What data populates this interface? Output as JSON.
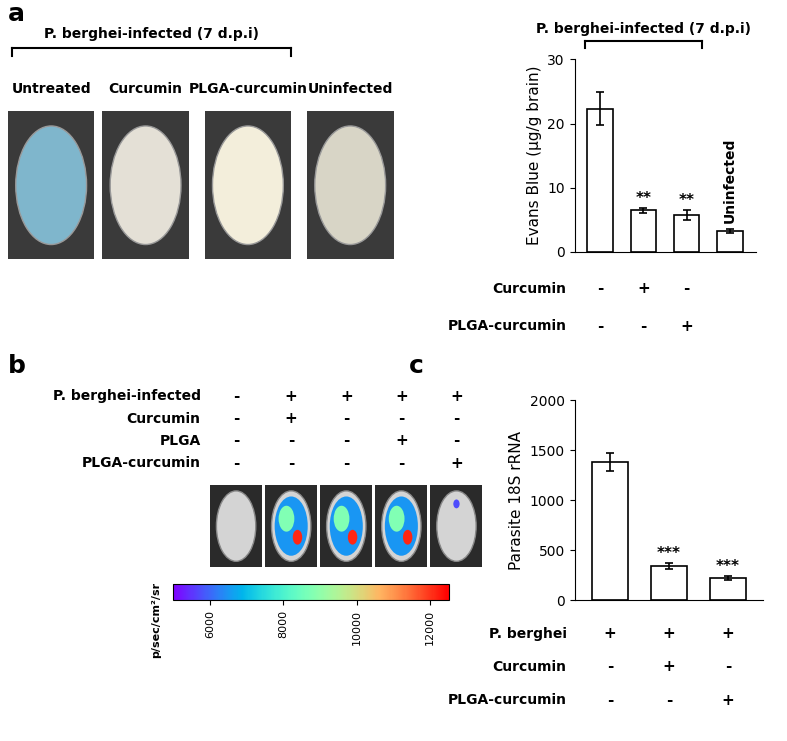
{
  "panel_labels": [
    "a",
    "b",
    "c"
  ],
  "panel_a_photos": {
    "header": "P. berghei-infected (7 d.p.i)",
    "labels": [
      "Untreated",
      "Curcumin",
      "PLGA-curcumin",
      "Uninfected"
    ]
  },
  "panel_b": {
    "conditions": [
      {
        "name": "P. berghei-infected",
        "values": [
          "-",
          "+",
          "+",
          "+",
          "+"
        ]
      },
      {
        "name": "Curcumin",
        "values": [
          "-",
          "+",
          "-",
          "-",
          "-"
        ]
      },
      {
        "name": "PLGA",
        "values": [
          "-",
          "-",
          "-",
          "+",
          "-"
        ]
      },
      {
        "name": "PLGA-curcumin",
        "values": [
          "-",
          "-",
          "-",
          "-",
          "+"
        ]
      }
    ],
    "colorbar": {
      "range": [
        5000,
        12500
      ],
      "ticks": [
        6000,
        8000,
        10000,
        12000
      ],
      "label": "p/sec/cm²/sr"
    }
  },
  "chart_data": [
    {
      "type": "bar",
      "header": "P. berghei-infected (7 d.p.i)",
      "ylabel": "Evans Blue (µg/g brain)",
      "categories": [
        null,
        null,
        null,
        null
      ],
      "values": [
        22.3,
        6.5,
        5.8,
        3.3
      ],
      "errors": [
        2.6,
        0.4,
        0.8,
        0.3
      ],
      "color": "#ffffff",
      "ylim": [
        0,
        30
      ],
      "yticks": [
        0,
        10,
        20,
        30
      ],
      "significance": [
        null,
        "**",
        "**",
        null
      ],
      "bar_text": [
        null,
        null,
        null,
        "Uninfected"
      ],
      "conditions": [
        {
          "name": "Curcumin",
          "values": [
            "-",
            "+",
            "-",
            null
          ]
        },
        {
          "name": "PLGA-curcumin",
          "values": [
            "-",
            "-",
            "+",
            null
          ]
        }
      ]
    },
    {
      "type": "bar",
      "ylabel": "Parasite 18S rRNA",
      "categories": [
        null,
        null,
        null
      ],
      "values": [
        1380,
        345,
        225
      ],
      "errors": [
        90,
        30,
        20
      ],
      "color": "#ffffff",
      "ylim": [
        0,
        2000
      ],
      "yticks": [
        0,
        500,
        1000,
        1500,
        2000
      ],
      "significance": [
        null,
        "***",
        "***"
      ],
      "conditions": [
        {
          "name": "P. berghei",
          "values": [
            "+",
            "+",
            "+"
          ]
        },
        {
          "name": "Curcumin",
          "values": [
            "-",
            "+",
            "-"
          ]
        },
        {
          "name": "PLGA-curcumin",
          "values": [
            "-",
            "-",
            "+"
          ]
        }
      ]
    }
  ]
}
